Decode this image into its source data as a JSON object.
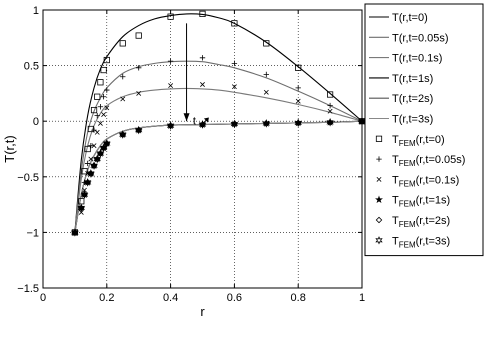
{
  "chart_data": {
    "type": "line",
    "xlabel": "r",
    "ylabel": "T(r,t)",
    "xlim": [
      0,
      1
    ],
    "ylim": [
      -1.5,
      1
    ],
    "x_ticks": [
      0,
      0.2,
      0.4,
      0.6,
      0.8,
      1
    ],
    "x_tick_labels": [
      "0",
      "0.2",
      "0.4",
      "0.6",
      "0.8",
      "1"
    ],
    "y_ticks": [
      -1.5,
      -1,
      -0.5,
      0,
      0.5,
      1
    ],
    "y_tick_labels": [
      "−1.5",
      "−1",
      "−0.5",
      "0",
      "0.5",
      "1"
    ],
    "grid": true,
    "legend_position": "outside-right",
    "annotation": {
      "text": "t",
      "x": 0.47,
      "y": -0.03
    },
    "arrow": {
      "from": [
        0.45,
        0.88
      ],
      "to": [
        0.45,
        0.0
      ]
    },
    "series": [
      {
        "name": "T(r,t=0)",
        "kind": "line",
        "color": "#000000",
        "x": [
          0.1,
          0.12,
          0.14,
          0.16,
          0.18,
          0.2,
          0.25,
          0.3,
          0.35,
          0.4,
          0.45,
          0.5,
          0.55,
          0.6,
          0.7,
          0.8,
          0.9,
          1.0
        ],
        "y": [
          -1.0,
          -0.35,
          0.05,
          0.3,
          0.47,
          0.58,
          0.76,
          0.86,
          0.92,
          0.95,
          0.965,
          0.96,
          0.93,
          0.88,
          0.71,
          0.49,
          0.25,
          0.0
        ]
      },
      {
        "name": "T(r,t=0.05s)",
        "kind": "line",
        "color": "#6e6e6e",
        "x": [
          0.1,
          0.12,
          0.14,
          0.16,
          0.18,
          0.2,
          0.25,
          0.3,
          0.35,
          0.4,
          0.45,
          0.5,
          0.55,
          0.6,
          0.7,
          0.8,
          0.9,
          1.0
        ],
        "y": [
          -1.0,
          -0.45,
          -0.1,
          0.09,
          0.21,
          0.3,
          0.43,
          0.49,
          0.52,
          0.535,
          0.54,
          0.535,
          0.51,
          0.48,
          0.39,
          0.27,
          0.14,
          0.0
        ]
      },
      {
        "name": "T(r,t=0.1s)",
        "kind": "line",
        "color": "#7a7a7a",
        "x": [
          0.1,
          0.12,
          0.14,
          0.16,
          0.18,
          0.2,
          0.25,
          0.3,
          0.35,
          0.4,
          0.45,
          0.5,
          0.55,
          0.6,
          0.7,
          0.8,
          0.9,
          1.0
        ],
        "y": [
          -1.0,
          -0.52,
          -0.22,
          -0.04,
          0.07,
          0.14,
          0.22,
          0.26,
          0.28,
          0.29,
          0.295,
          0.29,
          0.28,
          0.26,
          0.21,
          0.15,
          0.08,
          0.0
        ]
      },
      {
        "name": "T(r,t=1s)",
        "kind": "line",
        "color": "#000000",
        "x": [
          0.1,
          0.12,
          0.14,
          0.16,
          0.18,
          0.2,
          0.25,
          0.3,
          0.35,
          0.4,
          0.5,
          0.6,
          0.7,
          0.8,
          0.9,
          1.0
        ],
        "y": [
          -1.0,
          -0.66,
          -0.44,
          -0.31,
          -0.22,
          -0.16,
          -0.09,
          -0.06,
          -0.045,
          -0.035,
          -0.03,
          -0.025,
          -0.02,
          -0.015,
          -0.01,
          0.0
        ]
      },
      {
        "name": "T(r,t=2s)",
        "kind": "line",
        "color": "#555555",
        "x": [
          0.1,
          0.12,
          0.14,
          0.16,
          0.18,
          0.2,
          0.25,
          0.3,
          0.35,
          0.4,
          0.5,
          0.6,
          0.7,
          0.8,
          0.9,
          1.0
        ],
        "y": [
          -1.0,
          -0.66,
          -0.44,
          -0.31,
          -0.22,
          -0.16,
          -0.09,
          -0.06,
          -0.045,
          -0.035,
          -0.03,
          -0.025,
          -0.02,
          -0.015,
          -0.01,
          0.0
        ]
      },
      {
        "name": "T(r,t=3s)",
        "kind": "line",
        "color": "#888888",
        "x": [
          0.1,
          0.12,
          0.14,
          0.16,
          0.18,
          0.2,
          0.25,
          0.3,
          0.35,
          0.4,
          0.5,
          0.6,
          0.7,
          0.8,
          0.9,
          1.0
        ],
        "y": [
          -1.0,
          -0.66,
          -0.44,
          -0.31,
          -0.22,
          -0.16,
          -0.09,
          -0.06,
          -0.045,
          -0.035,
          -0.03,
          -0.025,
          -0.02,
          -0.015,
          -0.01,
          0.0
        ]
      },
      {
        "name": "T_FEM(r,t=0)",
        "label_main": "T",
        "label_sub": "FEM",
        "label_rest": "(r,t=0)",
        "kind": "marker",
        "marker": "square",
        "color": "#000000",
        "x": [
          0.1,
          0.12,
          0.13,
          0.14,
          0.15,
          0.16,
          0.17,
          0.18,
          0.19,
          0.2,
          0.25,
          0.3,
          0.4,
          0.5,
          0.6,
          0.7,
          0.8,
          0.9,
          1.0
        ],
        "y": [
          -1.0,
          -0.72,
          -0.45,
          -0.25,
          -0.07,
          0.1,
          0.22,
          0.35,
          0.46,
          0.55,
          0.7,
          0.77,
          0.94,
          0.965,
          0.88,
          0.7,
          0.48,
          0.24,
          0.0
        ]
      },
      {
        "name": "T_FEM(r,t=0.05s)",
        "label_main": "T",
        "label_sub": "FEM",
        "label_rest": "(r,t=0.05s)",
        "kind": "marker",
        "marker": "plus",
        "color": "#000000",
        "x": [
          0.1,
          0.12,
          0.13,
          0.14,
          0.15,
          0.16,
          0.17,
          0.18,
          0.19,
          0.2,
          0.25,
          0.3,
          0.4,
          0.5,
          0.6,
          0.7,
          0.8,
          0.9,
          1.0
        ],
        "y": [
          -1.0,
          -0.78,
          -0.55,
          -0.38,
          -0.22,
          -0.08,
          0.05,
          0.13,
          0.22,
          0.28,
          0.4,
          0.48,
          0.54,
          0.57,
          0.52,
          0.42,
          0.3,
          0.14,
          0.0
        ]
      },
      {
        "name": "T_FEM(r,t=0.1s)",
        "label_main": "T",
        "label_sub": "FEM",
        "label_rest": "(r,t=0.1s)",
        "kind": "marker",
        "marker": "x",
        "color": "#000000",
        "x": [
          0.1,
          0.12,
          0.13,
          0.14,
          0.15,
          0.16,
          0.17,
          0.18,
          0.19,
          0.2,
          0.25,
          0.3,
          0.4,
          0.5,
          0.6,
          0.7,
          0.8,
          0.9,
          1.0
        ],
        "y": [
          -1.0,
          -0.82,
          -0.62,
          -0.47,
          -0.34,
          -0.22,
          -0.1,
          -0.02,
          0.06,
          0.12,
          0.2,
          0.25,
          0.32,
          0.33,
          0.31,
          0.26,
          0.18,
          0.09,
          0.0
        ]
      },
      {
        "name": "T_FEM(r,t=1s)",
        "label_main": "T",
        "label_sub": "FEM",
        "label_rest": "(r,t=1s)",
        "kind": "marker",
        "marker": "star",
        "color": "#000000",
        "x": [
          0.1,
          0.12,
          0.13,
          0.14,
          0.15,
          0.16,
          0.17,
          0.18,
          0.19,
          0.2,
          0.25,
          0.3,
          0.4,
          0.5,
          0.6,
          0.7,
          0.8,
          0.9,
          1.0
        ],
        "y": [
          -1.0,
          -0.78,
          -0.66,
          -0.55,
          -0.47,
          -0.4,
          -0.34,
          -0.29,
          -0.24,
          -0.2,
          -0.12,
          -0.08,
          -0.04,
          -0.03,
          -0.025,
          -0.02,
          -0.015,
          -0.01,
          0.0
        ]
      },
      {
        "name": "T_FEM(r,t=2s)",
        "label_main": "T",
        "label_sub": "FEM",
        "label_rest": "(r,t=2s)",
        "kind": "marker",
        "marker": "diamond",
        "color": "#000000",
        "x": [
          0.1,
          0.12,
          0.13,
          0.14,
          0.15,
          0.16,
          0.17,
          0.18,
          0.19,
          0.2,
          0.25,
          0.3,
          0.4,
          0.5,
          0.6,
          0.7,
          0.8,
          0.9,
          1.0
        ],
        "y": [
          -1.0,
          -0.78,
          -0.66,
          -0.55,
          -0.47,
          -0.4,
          -0.34,
          -0.29,
          -0.24,
          -0.2,
          -0.12,
          -0.08,
          -0.04,
          -0.03,
          -0.025,
          -0.02,
          -0.015,
          -0.01,
          0.0
        ]
      },
      {
        "name": "T_FEM(r,t=3s)",
        "label_main": "T",
        "label_sub": "FEM",
        "label_rest": "(r,t=3s)",
        "kind": "marker",
        "marker": "hexagram",
        "color": "#000000",
        "x": [
          0.1,
          0.12,
          0.13,
          0.14,
          0.15,
          0.16,
          0.17,
          0.18,
          0.19,
          0.2,
          0.25,
          0.3,
          0.4,
          0.5,
          0.6,
          0.7,
          0.8,
          0.9,
          1.0
        ],
        "y": [
          -1.0,
          -0.78,
          -0.66,
          -0.55,
          -0.47,
          -0.4,
          -0.34,
          -0.29,
          -0.24,
          -0.2,
          -0.12,
          -0.08,
          -0.04,
          -0.03,
          -0.025,
          -0.02,
          -0.015,
          -0.01,
          0.0
        ]
      }
    ]
  }
}
